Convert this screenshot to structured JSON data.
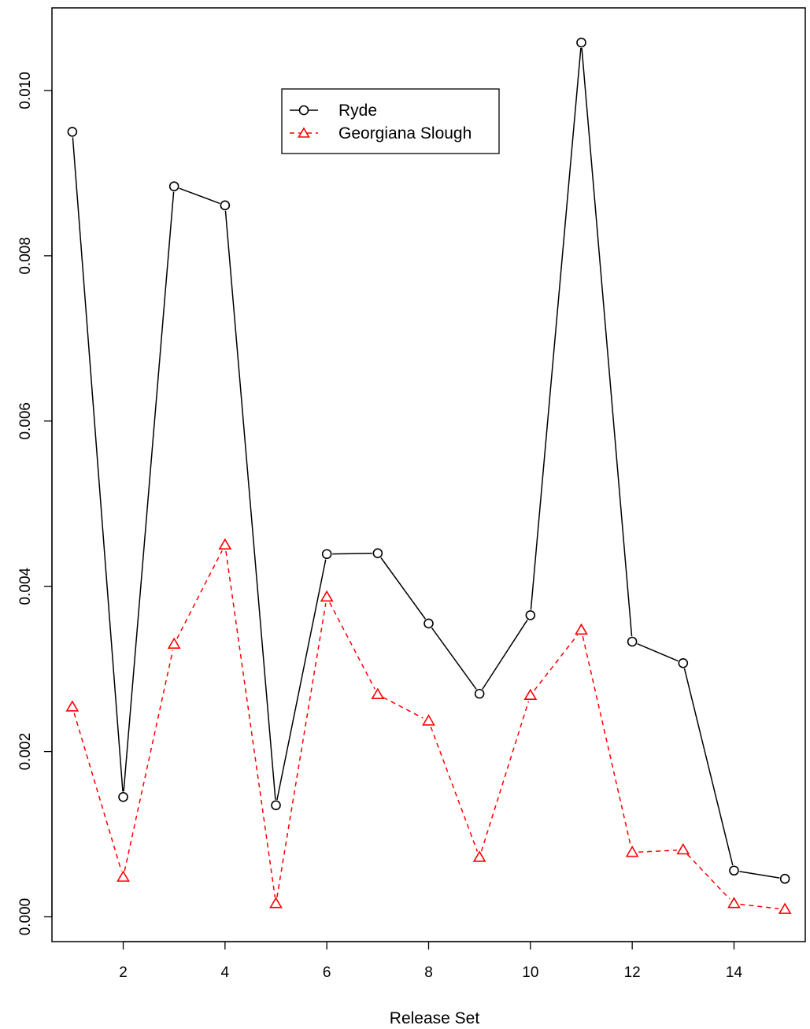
{
  "chart_data": {
    "type": "line",
    "title": "",
    "xlabel": "Release Set",
    "ylabel": "",
    "xlim": [
      0.6,
      15.4
    ],
    "ylim": [
      -0.0003,
      0.011
    ],
    "xticks": [
      2,
      4,
      6,
      8,
      10,
      12,
      14
    ],
    "xtick_labels": [
      "2",
      "4",
      "6",
      "8",
      "10",
      "12",
      "14"
    ],
    "yticks": [
      0,
      0.002,
      0.004,
      0.006,
      0.008,
      0.01
    ],
    "ytick_labels": [
      "0.000",
      "0.002",
      "0.004",
      "0.006",
      "0.008",
      "0.010"
    ],
    "grid": false,
    "legend_position": "top-center",
    "x": [
      1,
      2,
      3,
      4,
      5,
      6,
      7,
      8,
      9,
      10,
      11,
      12,
      13,
      14,
      15
    ],
    "series": [
      {
        "name": "Ryde",
        "color": "#000000",
        "marker": "circle",
        "line": "solid",
        "values": [
          0.0095,
          0.00145,
          0.00884,
          0.00861,
          0.00135,
          0.00439,
          0.0044,
          0.00355,
          0.0027,
          0.00365,
          0.01058,
          0.00333,
          0.00307,
          0.00056,
          0.00046
        ]
      },
      {
        "name": "Georgiana Slough",
        "color": "#ff0000",
        "marker": "triangle",
        "line": "dashed",
        "values": [
          0.00254,
          0.00048,
          0.0033,
          0.0045,
          0.00016,
          0.00387,
          0.00269,
          0.00237,
          0.00072,
          0.00268,
          0.00347,
          0.00078,
          0.00081,
          0.00016,
          9e-05
        ]
      }
    ]
  }
}
